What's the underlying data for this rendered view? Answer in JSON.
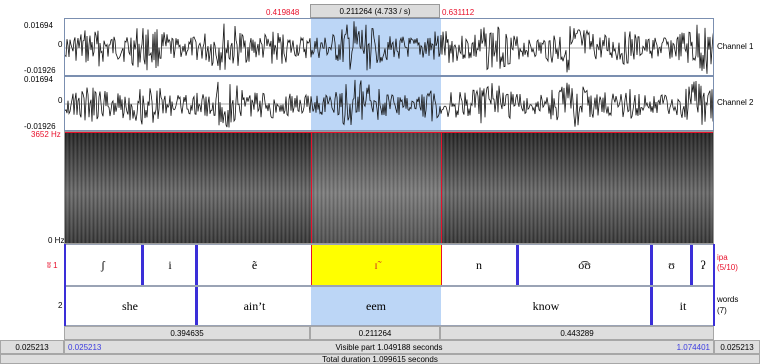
{
  "top_selection": {
    "start": "0.419848",
    "duration": "0.211264 (4.733 / s)",
    "end": "0.631112"
  },
  "channel1": {
    "max": "0.01694",
    "zero": "0",
    "min": "-0.01926",
    "label": "Channel 1"
  },
  "channel2": {
    "max": "0.01694",
    "zero": "0",
    "min": "-0.01926",
    "label": "Channel 2"
  },
  "spectrogram": {
    "top_label": "3652 Hz",
    "bottom_label": "0 Hz"
  },
  "tier1": {
    "number": "1",
    "marker": "ʬ",
    "name": "ipa",
    "info": "(5/10)",
    "intervals": [
      "ʃ",
      "i",
      "ẽ",
      "ɪ̃",
      "n",
      "o͡ʊ",
      "ʊ",
      "ʔ"
    ]
  },
  "tier2": {
    "number": "2",
    "name": "words",
    "info": "(7)",
    "intervals": [
      "she",
      "ain’t",
      "eem",
      "know",
      "it"
    ]
  },
  "durations": {
    "left": "0.394635",
    "selected": "0.211264",
    "right": "0.443289"
  },
  "visible_bar": {
    "outer_left": "0.025213",
    "inner_left": "0.025213",
    "center": "Visible part 1.049188 seconds",
    "inner_right": "1.074401",
    "outer_right": "0.025213"
  },
  "total_bar": {
    "label": "Total duration 1.099615 seconds"
  },
  "colors": {
    "selection": "#bcd6f6",
    "highlight": "#ffff00",
    "boundary": "#3a2fd8",
    "red": "#e8102b"
  }
}
